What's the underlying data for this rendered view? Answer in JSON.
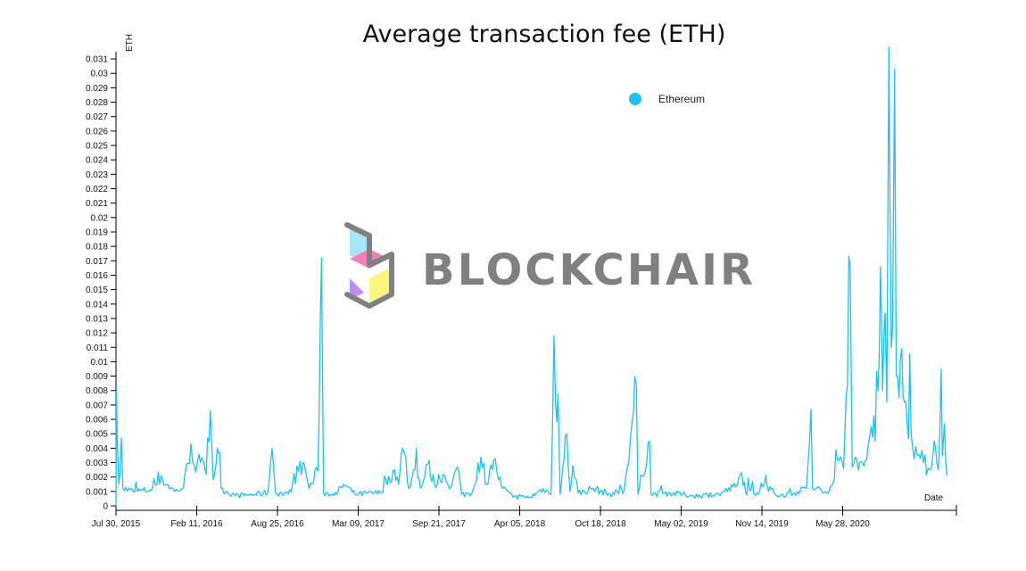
{
  "chart_data": {
    "type": "line",
    "title": "Average transaction fee (ETH)",
    "ylabel": "ETH",
    "xlabel": "Date",
    "ylim": [
      0,
      0.0315
    ],
    "xlim": [
      "2015-07-30",
      "2021-02-28"
    ],
    "x_ticks": [
      "Jul 30, 2015",
      "Feb 11, 2016",
      "Aug 25, 2016",
      "Mar 09, 2017",
      "Sep 21, 2017",
      "Apr 05, 2018",
      "Oct 18, 2018",
      "May 02, 2019",
      "Nov 14, 2019",
      "May 28, 2020"
    ],
    "y_ticks": [
      "0",
      "0.001",
      "0.002",
      "0.003",
      "0.004",
      "0.005",
      "0.006",
      "0.007",
      "0.008",
      "0.009",
      "0.01",
      "0.011",
      "0.012",
      "0.013",
      "0.014",
      "0.015",
      "0.016",
      "0.017",
      "0.018",
      "0.019",
      "0.02",
      "0.021",
      "0.022",
      "0.023",
      "0.024",
      "0.025",
      "0.026",
      "0.027",
      "0.028",
      "0.029",
      "0.03",
      "0.031"
    ],
    "legend": {
      "position": "top-right",
      "entries": [
        "Ethereum"
      ]
    },
    "grid": false,
    "line_color": "#1ec1f0",
    "series": [
      {
        "name": "Ethereum",
        "color": "#1ec1f0",
        "points": [
          [
            "2015-07-30",
            0.0
          ],
          [
            "2015-07-31",
            0.008
          ],
          [
            "2015-08-02",
            0.0045
          ],
          [
            "2015-08-06",
            0.0015
          ],
          [
            "2015-08-12",
            0.0047
          ],
          [
            "2015-08-16",
            0.0012
          ],
          [
            "2015-09-10",
            0.001
          ],
          [
            "2015-10-20",
            0.0011
          ],
          [
            "2015-11-20",
            0.0018
          ],
          [
            "2015-12-20",
            0.001
          ],
          [
            "2016-01-10",
            0.0013
          ],
          [
            "2016-01-28",
            0.0043
          ],
          [
            "2016-02-05",
            0.0028
          ],
          [
            "2016-02-20",
            0.003
          ],
          [
            "2016-03-05",
            0.0022
          ],
          [
            "2016-03-15",
            0.0066
          ],
          [
            "2016-03-22",
            0.0018
          ],
          [
            "2016-04-01",
            0.004
          ],
          [
            "2016-04-10",
            0.0012
          ],
          [
            "2016-05-15",
            0.0007
          ],
          [
            "2016-07-01",
            0.0008
          ],
          [
            "2016-08-01",
            0.0009
          ],
          [
            "2016-08-12",
            0.004
          ],
          [
            "2016-08-20",
            0.0009
          ],
          [
            "2016-09-20",
            0.0008
          ],
          [
            "2016-10-15",
            0.0024
          ],
          [
            "2016-10-29",
            0.0029
          ],
          [
            "2016-11-10",
            0.0012
          ],
          [
            "2016-12-01",
            0.0024
          ],
          [
            "2016-12-10",
            0.0172
          ],
          [
            "2016-12-15",
            0.0009
          ],
          [
            "2017-01-15",
            0.0008
          ],
          [
            "2017-02-01",
            0.0015
          ],
          [
            "2017-03-01",
            0.0008
          ],
          [
            "2017-05-01",
            0.0009
          ],
          [
            "2017-06-05",
            0.0025
          ],
          [
            "2017-06-15",
            0.0015
          ],
          [
            "2017-06-25",
            0.004
          ],
          [
            "2017-07-10",
            0.0012
          ],
          [
            "2017-07-25",
            0.0025
          ],
          [
            "2017-08-10",
            0.0013
          ],
          [
            "2017-08-25",
            0.0029
          ],
          [
            "2017-09-10",
            0.0015
          ],
          [
            "2017-10-01",
            0.0022
          ],
          [
            "2017-10-20",
            0.0013
          ],
          [
            "2017-11-05",
            0.0027
          ],
          [
            "2017-11-15",
            0.0008
          ],
          [
            "2017-12-10",
            0.0009
          ],
          [
            "2018-01-01",
            0.0034
          ],
          [
            "2018-01-15",
            0.0015
          ],
          [
            "2018-02-01",
            0.0032
          ],
          [
            "2018-02-20",
            0.0013
          ],
          [
            "2018-03-20",
            0.0006
          ],
          [
            "2018-05-01",
            0.0006
          ],
          [
            "2018-06-01",
            0.0012
          ],
          [
            "2018-06-20",
            0.0008
          ],
          [
            "2018-06-27",
            0.0118
          ],
          [
            "2018-07-01",
            0.0072
          ],
          [
            "2018-07-07",
            0.0078
          ],
          [
            "2018-07-12",
            0.0008
          ],
          [
            "2018-07-28",
            0.005
          ],
          [
            "2018-08-05",
            0.001
          ],
          [
            "2018-08-12",
            0.0028
          ],
          [
            "2018-08-25",
            0.0009
          ],
          [
            "2018-10-01",
            0.0012
          ],
          [
            "2018-11-10",
            0.0008
          ],
          [
            "2018-12-15",
            0.0011
          ],
          [
            "2019-01-13",
            0.0084
          ],
          [
            "2019-01-17",
            0.0008
          ],
          [
            "2019-02-14",
            0.0045
          ],
          [
            "2019-02-18",
            0.0008
          ],
          [
            "2019-04-01",
            0.0009
          ],
          [
            "2019-06-01",
            0.0007
          ],
          [
            "2019-08-01",
            0.0008
          ],
          [
            "2019-09-15",
            0.0014
          ],
          [
            "2019-09-26",
            0.0023
          ],
          [
            "2019-10-05",
            0.001
          ],
          [
            "2019-11-01",
            0.0009
          ],
          [
            "2019-11-20",
            0.0015
          ],
          [
            "2019-12-20",
            0.0007
          ],
          [
            "2020-02-01",
            0.0009
          ],
          [
            "2020-03-01",
            0.0012
          ],
          [
            "2020-03-12",
            0.0067
          ],
          [
            "2020-03-16",
            0.0012
          ],
          [
            "2020-04-10",
            0.0009
          ],
          [
            "2020-05-01",
            0.0014
          ],
          [
            "2020-05-15",
            0.0032
          ],
          [
            "2020-05-30",
            0.0026
          ],
          [
            "2020-06-15",
            0.0165
          ],
          [
            "2020-06-20",
            0.0027
          ],
          [
            "2020-07-05",
            0.0025
          ],
          [
            "2020-07-25",
            0.0032
          ],
          [
            "2020-08-05",
            0.0055
          ],
          [
            "2020-08-15",
            0.0045
          ],
          [
            "2020-08-28",
            0.0166
          ],
          [
            "2020-09-02",
            0.008
          ],
          [
            "2020-09-08",
            0.0134
          ],
          [
            "2020-09-12",
            0.0072
          ],
          [
            "2020-09-17",
            0.0318
          ],
          [
            "2020-09-20",
            0.02
          ],
          [
            "2020-09-23",
            0.011
          ],
          [
            "2020-09-26",
            0.0122
          ],
          [
            "2020-10-01",
            0.0303
          ],
          [
            "2020-10-05",
            0.009
          ],
          [
            "2020-10-15",
            0.0102
          ],
          [
            "2020-10-25",
            0.0072
          ],
          [
            "2020-11-10",
            0.005
          ],
          [
            "2020-11-25",
            0.0035
          ],
          [
            "2020-12-10",
            0.003
          ],
          [
            "2020-12-25",
            0.0025
          ],
          [
            "2021-01-05",
            0.0045
          ],
          [
            "2021-01-15",
            0.0025
          ],
          [
            "2021-01-22",
            0.0095
          ],
          [
            "2021-01-25",
            0.0035
          ],
          [
            "2021-01-30",
            0.0057
          ],
          [
            "2021-02-05",
            0.0021
          ]
        ]
      }
    ]
  },
  "watermark": {
    "text": "BLOCKCHAIR",
    "text_color": "#808080",
    "logo_colors": [
      "#a8e4f5",
      "#f77fb8",
      "#c18cf0",
      "#fbf57e"
    ]
  }
}
